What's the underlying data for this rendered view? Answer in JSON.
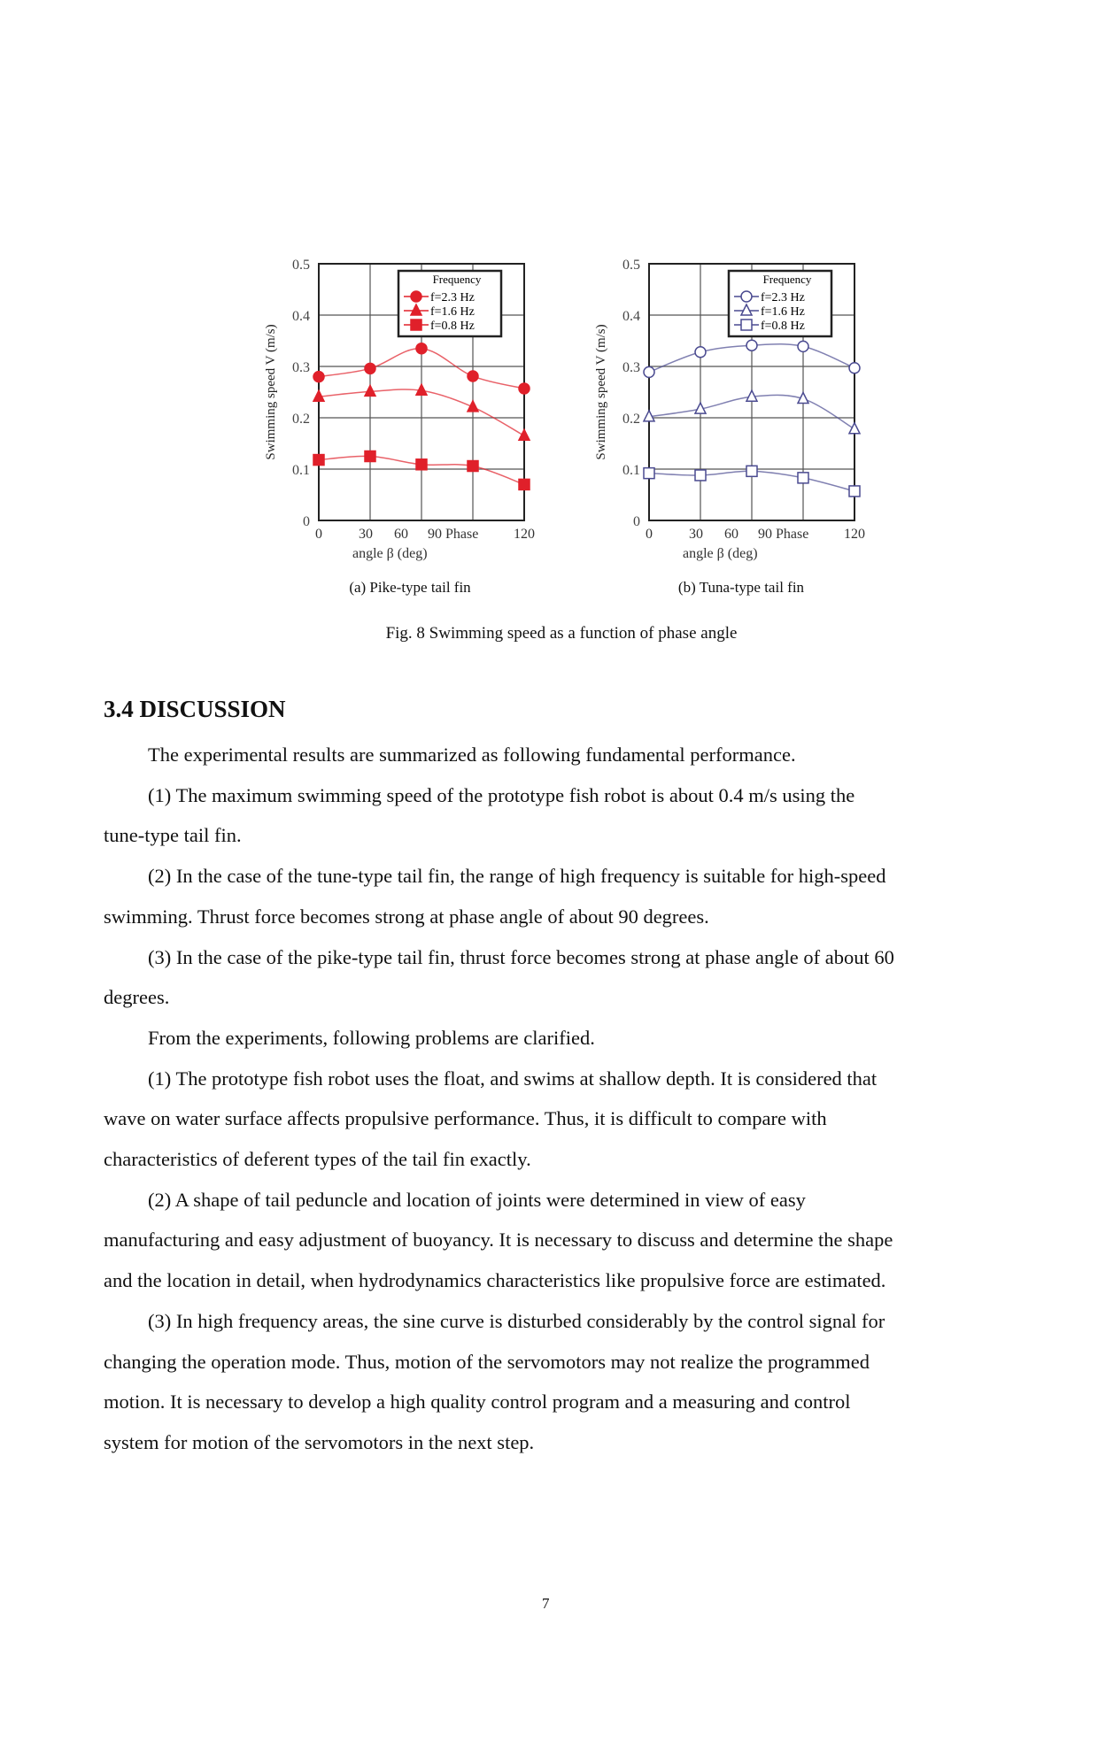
{
  "chart_data": [
    {
      "type": "line",
      "panel": "a",
      "ylabel": "Swimming speed V (m/s)",
      "xlabel_parts": [
        "0",
        "30",
        "60",
        "90 Phase",
        "120"
      ],
      "xlabel": "angle β (deg)",
      "x": [
        0,
        30,
        60,
        90,
        120
      ],
      "xlim": [
        0,
        120
      ],
      "ylim": [
        0,
        0.5
      ],
      "yticks": [
        "0",
        "0.1",
        "0.2",
        "0.3",
        "0.4",
        "0.5"
      ],
      "grid": true,
      "legend_title": "Frequency",
      "legend_position": "top-right",
      "color": "#e0202a",
      "series": [
        {
          "name": "f=2.3 Hz",
          "marker": "filled-circle",
          "values": [
            0.28,
            0.296,
            0.335,
            0.281,
            0.257
          ]
        },
        {
          "name": "f=1.6 Hz",
          "marker": "filled-triangle",
          "values": [
            0.241,
            0.251,
            0.253,
            0.221,
            0.165
          ]
        },
        {
          "name": "f=0.8 Hz",
          "marker": "filled-square",
          "values": [
            0.118,
            0.125,
            0.109,
            0.106,
            0.07
          ]
        }
      ],
      "caption": "(a) Pike-type tail fin"
    },
    {
      "type": "line",
      "panel": "b",
      "ylabel": "Swimming speed V (m/s)",
      "xlabel_parts": [
        "0",
        "30",
        "60",
        "90 Phase",
        "120"
      ],
      "xlabel": "angle β (deg)",
      "x": [
        0,
        30,
        60,
        90,
        120
      ],
      "xlim": [
        0,
        120
      ],
      "ylim": [
        0,
        0.5
      ],
      "yticks": [
        "0",
        "0.1",
        "0.2",
        "0.3",
        "0.4",
        "0.5"
      ],
      "grid": true,
      "legend_title": "Frequency",
      "legend_position": "top-right",
      "color": "#4a4a90",
      "series": [
        {
          "name": "f=2.3 Hz",
          "marker": "open-circle",
          "values": [
            0.289,
            0.328,
            0.341,
            0.339,
            0.297
          ]
        },
        {
          "name": "f=1.6 Hz",
          "marker": "open-triangle",
          "values": [
            0.202,
            0.217,
            0.241,
            0.237,
            0.178
          ]
        },
        {
          "name": "f=0.8 Hz",
          "marker": "open-square",
          "values": [
            0.092,
            0.088,
            0.096,
            0.083,
            0.057
          ]
        }
      ],
      "caption": "(b) Tuna-type tail fin"
    }
  ],
  "figure_caption": "Fig. 8 Swimming speed as a function of phase angle",
  "section_heading": "3.4 DISCUSSION",
  "body_lines": [
    {
      "indent": true,
      "text": "The experimental results are summarized as following fundamental performance."
    },
    {
      "indent": true,
      "text": "(1) The maximum swimming speed of the prototype fish robot is about 0.4 m/s using the"
    },
    {
      "indent": false,
      "text": "tune-type tail fin."
    },
    {
      "indent": true,
      "text": "(2) In the case of the tune-type tail fin, the range of high frequency is suitable for high-speed"
    },
    {
      "indent": false,
      "text": "swimming. Thrust force becomes strong at phase angle of about 90 degrees."
    },
    {
      "indent": true,
      "text": "(3) In the case of the pike-type tail fin, thrust force becomes strong at phase angle of about 60"
    },
    {
      "indent": false,
      "text": "degrees."
    },
    {
      "indent": true,
      "text": "From the experiments, following problems are clarified."
    },
    {
      "indent": true,
      "text": "(1) The prototype fish robot uses the float, and swims at shallow depth. It is considered that"
    },
    {
      "indent": false,
      "text": "wave on water surface affects propulsive performance. Thus, it is difficult to compare with"
    },
    {
      "indent": false,
      "text": "characteristics of deferent types of the tail fin exactly."
    },
    {
      "indent": true,
      "text": "(2) A shape of tail peduncle and location of joints were determined in view of easy"
    },
    {
      "indent": false,
      "text": "manufacturing and easy adjustment of buoyancy. It is necessary to discuss and determine the shape"
    },
    {
      "indent": false,
      "text": "and the location in detail, when hydrodynamics characteristics like propulsive force are estimated."
    },
    {
      "indent": true,
      "text": "(3) In high frequency areas, the sine curve is disturbed considerably by the control signal for"
    },
    {
      "indent": false,
      "text": "changing the operation mode. Thus, motion of the servomotors may not realize the programmed"
    },
    {
      "indent": false,
      "text": "motion. It is necessary to develop a high quality control program and a measuring and control"
    },
    {
      "indent": false,
      "text": "system for motion of the servomotors in the next step."
    }
  ],
  "page_number": "7"
}
